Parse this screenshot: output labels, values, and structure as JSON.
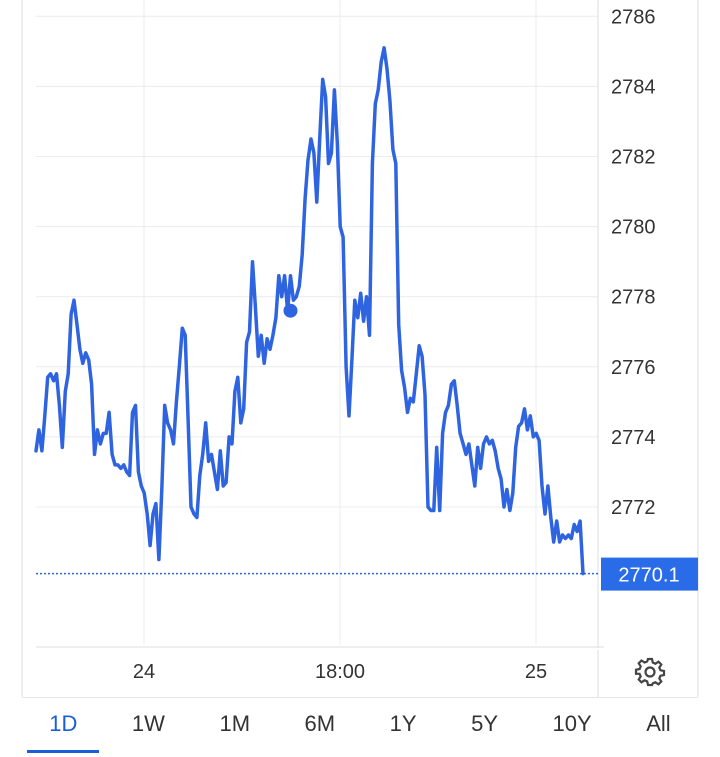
{
  "colors": {
    "line": "#2f64e0",
    "tag": "#2a6ce8",
    "accent": "#1a5fd8",
    "grid": "#ececec",
    "frame": "#dddddd"
  },
  "chart_data": {
    "type": "line",
    "y_axis_position": "right",
    "ylim": [
      2769,
      2786.3
    ],
    "y_ticks": [
      2772,
      2774,
      2776,
      2778,
      2780,
      2782,
      2784,
      2786
    ],
    "x_tick_labels": [
      "24",
      "18:00",
      "25"
    ],
    "last_price_label": "2770.1",
    "marker_value": 2777.6,
    "grid": true,
    "values": [
      2773.6,
      2774.2,
      2773.6,
      2774.6,
      2775.7,
      2775.8,
      2775.6,
      2775.8,
      2774.9,
      2773.7,
      2775.3,
      2775.8,
      2777.5,
      2777.9,
      2777.2,
      2776.5,
      2776.1,
      2776.4,
      2776.2,
      2775.5,
      2773.5,
      2774.2,
      2773.8,
      2774.1,
      2774.1,
      2774.7,
      2773.5,
      2773.2,
      2773.2,
      2773.1,
      2773.2,
      2773.0,
      2772.9,
      2774.7,
      2774.9,
      2773.0,
      2772.6,
      2772.4,
      2771.8,
      2770.9,
      2771.8,
      2772.1,
      2770.5,
      2772.5,
      2774.9,
      2774.4,
      2774.2,
      2773.8,
      2775.0,
      2776.0,
      2777.1,
      2776.9,
      2774.5,
      2772.0,
      2771.8,
      2771.7,
      2772.9,
      2773.5,
      2774.4,
      2773.3,
      2773.5,
      2773.0,
      2772.5,
      2773.6,
      2772.6,
      2772.7,
      2774.0,
      2773.8,
      2775.3,
      2775.7,
      2774.4,
      2774.8,
      2776.7,
      2777.0,
      2779.0,
      2777.7,
      2776.3,
      2776.9,
      2776.1,
      2776.8,
      2776.5,
      2776.9,
      2777.4,
      2778.6,
      2778.0,
      2778.6,
      2777.6,
      2778.6,
      2777.9,
      2778.0,
      2778.3,
      2779.2,
      2780.8,
      2781.9,
      2782.5,
      2782.1,
      2780.7,
      2782.5,
      2784.2,
      2783.7,
      2781.8,
      2782.1,
      2783.9,
      2782.4,
      2780.0,
      2779.7,
      2776.0,
      2774.6,
      2776.2,
      2777.9,
      2777.4,
      2778.1,
      2777.3,
      2778.0,
      2776.9,
      2781.8,
      2783.5,
      2783.9,
      2784.7,
      2785.1,
      2784.5,
      2783.6,
      2782.2,
      2781.8,
      2777.2,
      2775.9,
      2775.4,
      2774.7,
      2775.1,
      2775.0,
      2775.8,
      2776.6,
      2776.3,
      2775.2,
      2772.0,
      2771.9,
      2771.9,
      2773.7,
      2771.9,
      2774.1,
      2774.7,
      2774.9,
      2775.5,
      2775.6,
      2774.9,
      2774.1,
      2773.8,
      2773.5,
      2773.8,
      2773.2,
      2772.6,
      2773.7,
      2773.1,
      2773.8,
      2774.0,
      2773.8,
      2773.9,
      2773.6,
      2773.1,
      2772.8,
      2772.0,
      2772.5,
      2771.9,
      2772.4,
      2773.7,
      2774.3,
      2774.4,
      2774.8,
      2774.2,
      2774.6,
      2774.0,
      2774.1,
      2773.9,
      2772.6,
      2771.8,
      2772.6,
      2771.7,
      2771.0,
      2771.6,
      2771.0,
      2771.2,
      2771.1,
      2771.2,
      2771.1,
      2771.5,
      2771.3,
      2771.6,
      2770.1
    ]
  },
  "range_tabs": [
    {
      "label": "1D",
      "active": true
    },
    {
      "label": "1W",
      "active": false
    },
    {
      "label": "1M",
      "active": false
    },
    {
      "label": "6M",
      "active": false
    },
    {
      "label": "1Y",
      "active": false
    },
    {
      "label": "5Y",
      "active": false
    },
    {
      "label": "10Y",
      "active": false
    },
    {
      "label": "All",
      "active": false
    }
  ],
  "icons": {
    "settings": "gear-icon"
  }
}
